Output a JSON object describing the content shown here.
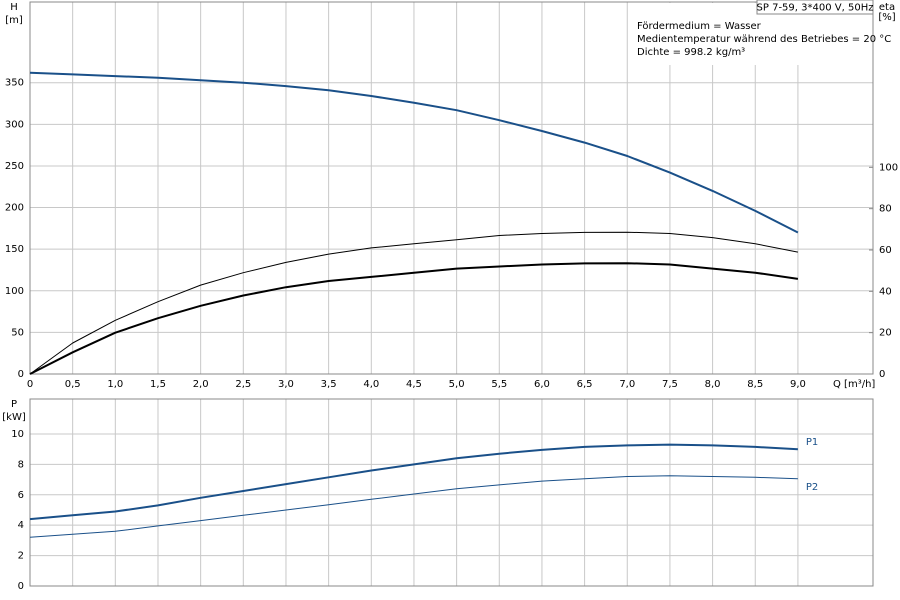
{
  "chart_data": [
    {
      "type": "line",
      "y_label": "H",
      "y_unit": "[m]",
      "y2_label": "eta",
      "y2_unit": "[%]",
      "x_label": "Q [m³/h]",
      "info": {
        "title": "SP 7-59, 3*400 V, 50Hz",
        "lines": [
          "Fördermedium = Wasser",
          "Medientemperatur während des Betriebes = 20 °C",
          "Dichte = 998.2 kg/m³"
        ]
      },
      "x": [
        0,
        0.5,
        1,
        1.5,
        2,
        2.5,
        3,
        3.5,
        4,
        4.5,
        5,
        5.5,
        6,
        6.5,
        7,
        7.5,
        8,
        8.5,
        9
      ],
      "series": [
        {
          "color": "#1a5089",
          "width": 2,
          "values": [
            362,
            360,
            358,
            356,
            353,
            350,
            346,
            341,
            334,
            326,
            317,
            305,
            292,
            278,
            262,
            242,
            220,
            196,
            170
          ]
        },
        {
          "color": "#000000",
          "width": 1,
          "axis": "y2",
          "values": [
            0,
            15,
            26,
            35,
            43,
            49,
            54,
            58,
            61,
            63,
            65,
            67,
            68,
            68.5,
            68.6,
            68,
            66,
            63,
            59
          ]
        },
        {
          "color": "#000000",
          "width": 2,
          "axis": "y2",
          "values": [
            0,
            10.5,
            20,
            27,
            33,
            38,
            42,
            45,
            47,
            49,
            51,
            52,
            53,
            53.5,
            53.6,
            53,
            51,
            49,
            46
          ]
        }
      ],
      "xlim": [
        0,
        9.88
      ],
      "xticks": [
        0,
        {
          "value": 0.5,
          "label": "0,5"
        },
        {
          "value": 1,
          "label": "1,0"
        },
        {
          "value": 1.5,
          "label": "1,5"
        },
        {
          "value": 2,
          "label": "2,0"
        },
        {
          "value": 2.5,
          "label": "2,5"
        },
        {
          "value": 3,
          "label": "3,0"
        },
        {
          "value": 3.5,
          "label": "3,5"
        },
        {
          "value": 4,
          "label": "4,0"
        },
        {
          "value": 4.5,
          "label": "4,5"
        },
        {
          "value": 5,
          "label": "5,0"
        },
        {
          "value": 5.5,
          "label": "5,5"
        },
        {
          "value": 6,
          "label": "6,0"
        },
        {
          "value": 6.5,
          "label": "6,5"
        },
        {
          "value": 7,
          "label": "7,0"
        },
        {
          "value": 7.5,
          "label": "7,5"
        },
        {
          "value": 8,
          "label": "8,0"
        },
        {
          "value": 8.5,
          "label": "8,5"
        },
        {
          "value": 9,
          "label": "9,0"
        }
      ],
      "ylim": [
        0,
        447
      ],
      "yticks": [
        0,
        50,
        100,
        150,
        200,
        250,
        300,
        350
      ],
      "y2lim": [
        0,
        180
      ],
      "y2ticks": [
        0,
        20,
        40,
        60,
        80,
        100
      ],
      "grid": true
    },
    {
      "type": "line",
      "y_label": "P",
      "y_unit": "[kW]",
      "x": [
        0,
        0.5,
        1,
        1.5,
        2,
        2.5,
        3,
        3.5,
        4,
        4.5,
        5,
        5.5,
        6,
        6.5,
        7,
        7.5,
        8,
        8.5,
        9
      ],
      "series": [
        {
          "name": "P1",
          "color": "#1a5089",
          "width": 2,
          "values": [
            4.4,
            4.65,
            4.9,
            5.3,
            5.8,
            6.25,
            6.7,
            7.15,
            7.6,
            8.0,
            8.4,
            8.7,
            8.95,
            9.15,
            9.25,
            9.3,
            9.25,
            9.15,
            9.0
          ]
        },
        {
          "name": "P2",
          "color": "#1a5089",
          "width": 1,
          "values": [
            3.2,
            3.4,
            3.6,
            3.95,
            4.3,
            4.65,
            5.0,
            5.35,
            5.7,
            6.05,
            6.4,
            6.65,
            6.9,
            7.05,
            7.2,
            7.25,
            7.2,
            7.15,
            7.05
          ]
        }
      ],
      "xlim": [
        0,
        9.88
      ],
      "ylim": [
        0,
        12.3
      ],
      "yticks": [
        0,
        2,
        4,
        6,
        8,
        10
      ],
      "grid": true
    }
  ]
}
